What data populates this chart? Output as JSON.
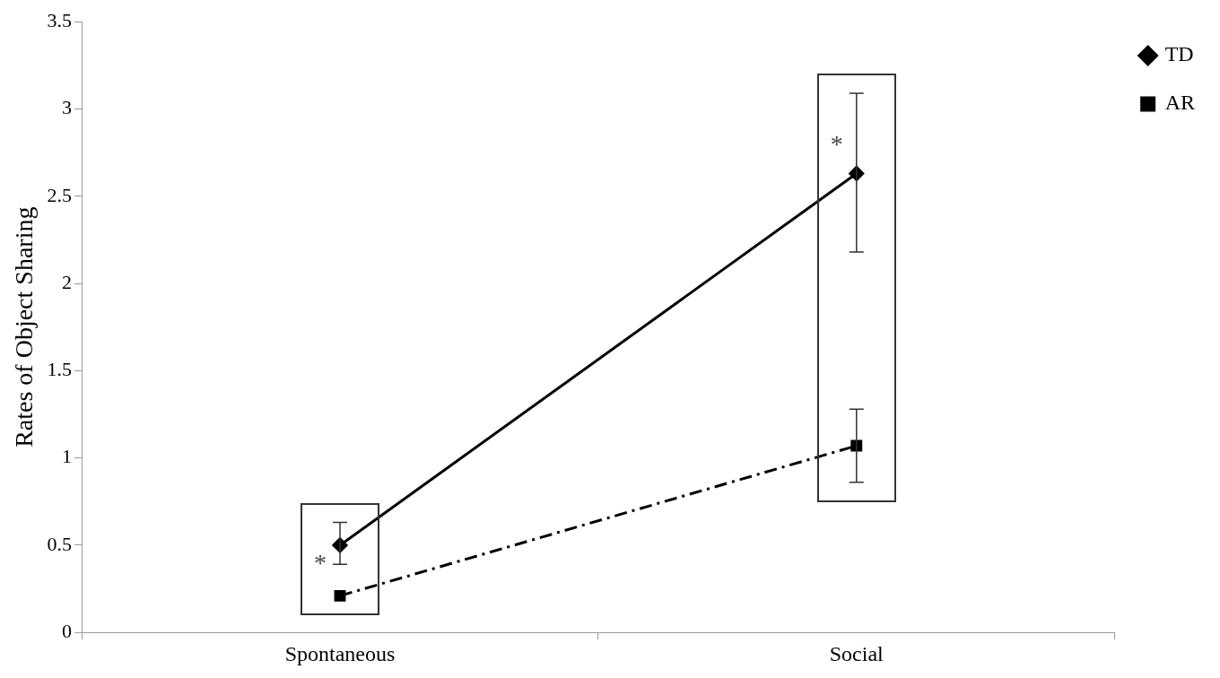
{
  "chart_data": {
    "type": "line",
    "ylabel": "Rates of Object Sharing",
    "categories": [
      "Spontaneous",
      "Social"
    ],
    "series": [
      {
        "name": "TD",
        "color": "#000000",
        "values": [
          0.5,
          2.63
        ],
        "errors": [
          [
            0.39,
            0.63
          ],
          [
            2.18,
            3.09
          ]
        ],
        "marker": "diamond",
        "line_style": "solid"
      },
      {
        "name": "AR",
        "color": "#000000",
        "values": [
          0.21,
          1.07
        ],
        "errors": [
          null,
          [
            0.86,
            1.28
          ]
        ],
        "marker": "square",
        "line_style": "dashed"
      }
    ],
    "ylim": [
      0,
      3.5
    ],
    "yticks": [
      0,
      0.5,
      1,
      1.5,
      2,
      2.5,
      3,
      3.5
    ],
    "legend": "right",
    "annotations": [
      {
        "text": "*",
        "x": "Spontaneous",
        "y": 0.42
      },
      {
        "text": "*",
        "x": "Social",
        "y": 2.82
      }
    ]
  }
}
